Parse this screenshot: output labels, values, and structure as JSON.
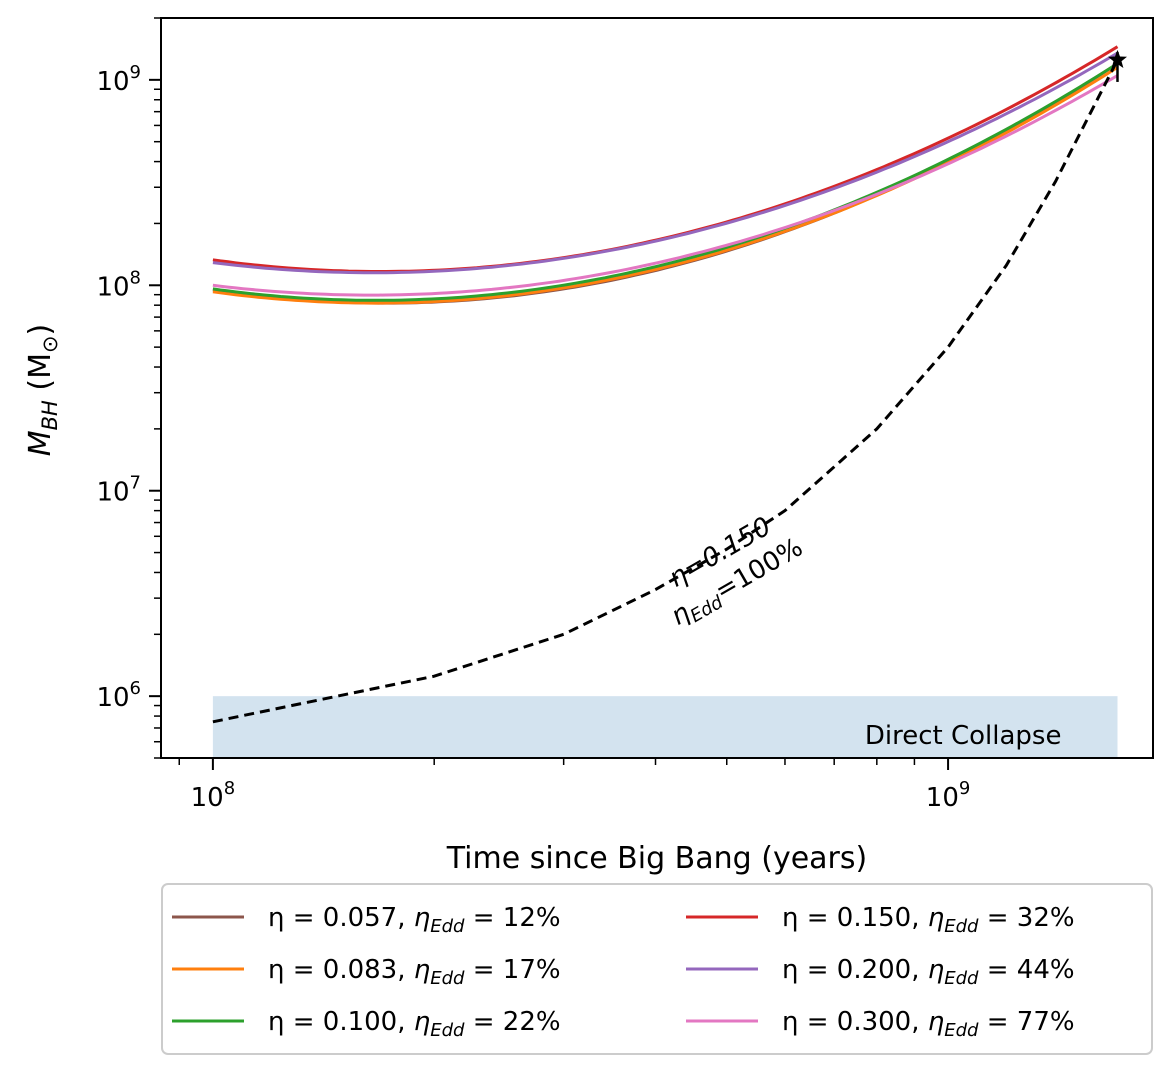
{
  "chart_data": {
    "type": "line",
    "x_scale": "log",
    "y_scale": "log",
    "xlim": [
      85000000,
      1900000000
    ],
    "ylim": [
      500000,
      2000000000
    ],
    "xlabel": "Time since Big Bang (years)",
    "ylabel_main": "M",
    "ylabel_sub": "BH",
    "ylabel_unit_open": "(M",
    "ylabel_unit_sub": "⊙",
    "ylabel_unit_close": ")",
    "x_ticks": [
      {
        "base": "10",
        "exp": "8",
        "value": 100000000
      },
      {
        "base": "10",
        "exp": "9",
        "value": 1000000000
      }
    ],
    "y_ticks": [
      {
        "base": "10",
        "exp": "6",
        "value": 1000000
      },
      {
        "base": "10",
        "exp": "7",
        "value": 10000000
      },
      {
        "base": "10",
        "exp": "8",
        "value": 100000000
      },
      {
        "base": "10",
        "exp": "9",
        "value": 1000000000
      }
    ],
    "series": [
      {
        "label": "η = 0.057, η_Edd = 12%",
        "eta": "η = 0.057, ",
        "eta_edd": "η",
        "edd_sub": "Edd",
        "edd_val": " = 12%",
        "color": "#8c564b",
        "style": "solid",
        "x": [
          100000000,
          1000000000,
          1700000000
        ],
        "y": [
          95000000,
          400000000,
          1200000000
        ]
      },
      {
        "label": "η = 0.083, η_Edd = 17%",
        "eta": "η = 0.083, ",
        "eta_edd": "η",
        "edd_sub": "Edd",
        "edd_val": " = 17%",
        "color": "#ff7f0e",
        "style": "solid",
        "x": [
          100000000,
          1000000000,
          1700000000
        ],
        "y": [
          93000000,
          395000000,
          1150000000
        ]
      },
      {
        "label": "η = 0.100, η_Edd = 22%",
        "eta": "η = 0.100, ",
        "eta_edd": "η",
        "edd_sub": "Edd",
        "edd_val": " = 22%",
        "color": "#2ca02c",
        "style": "solid",
        "x": [
          100000000,
          1000000000,
          1700000000
        ],
        "y": [
          96000000,
          410000000,
          1200000000
        ]
      },
      {
        "label": "η = 0.150, η_Edd = 32%",
        "eta": "η = 0.150, ",
        "eta_edd": "η",
        "edd_sub": "Edd",
        "edd_val": " = 32%",
        "color": "#d62728",
        "style": "solid",
        "x": [
          100000000,
          1000000000,
          1700000000
        ],
        "y": [
          133000000,
          520000000,
          1450000000
        ]
      },
      {
        "label": "η = 0.200, η_Edd = 44%",
        "eta": "η = 0.200, ",
        "eta_edd": "η",
        "edd_sub": "Edd",
        "edd_val": " = 44%",
        "color": "#9467bd",
        "style": "solid",
        "x": [
          100000000,
          1000000000,
          1700000000
        ],
        "y": [
          129000000,
          500000000,
          1350000000
        ]
      },
      {
        "label": "η = 0.300, η_Edd = 77%",
        "eta": "η = 0.300, ",
        "eta_edd": "η",
        "edd_sub": "Edd",
        "edd_val": " = 77%",
        "color": "#e377c2",
        "style": "solid",
        "x": [
          100000000,
          1000000000,
          1700000000
        ],
        "y": [
          100000000,
          390000000,
          1050000000
        ]
      }
    ],
    "edd_curve": {
      "color": "#000000",
      "style": "dashed",
      "x": [
        100000000,
        200000000,
        300000000,
        400000000,
        500000000,
        600000000,
        800000000,
        1000000000,
        1200000000,
        1400000000,
        1700000000
      ],
      "y": [
        750000,
        1250000,
        2000000,
        3300000,
        5200000,
        8000000,
        20000000,
        50000000,
        125000000,
        320000000,
        1250000000
      ]
    },
    "target": {
      "x": 1700000000,
      "y": 1250000000,
      "marker": "star",
      "color": "#000000"
    },
    "edd_annotation_line1": "η=0.150",
    "edd_annotation_line2_main": "η",
    "edd_annotation_line2_sub": "Edd",
    "edd_annotation_line2_val": "=100%",
    "region": {
      "label": "Direct Collapse",
      "x": [
        100000000,
        1700000000
      ],
      "y": [
        500000,
        1000000
      ],
      "color": "#d3e3ef"
    },
    "legend_placement": "below",
    "grid": false
  }
}
